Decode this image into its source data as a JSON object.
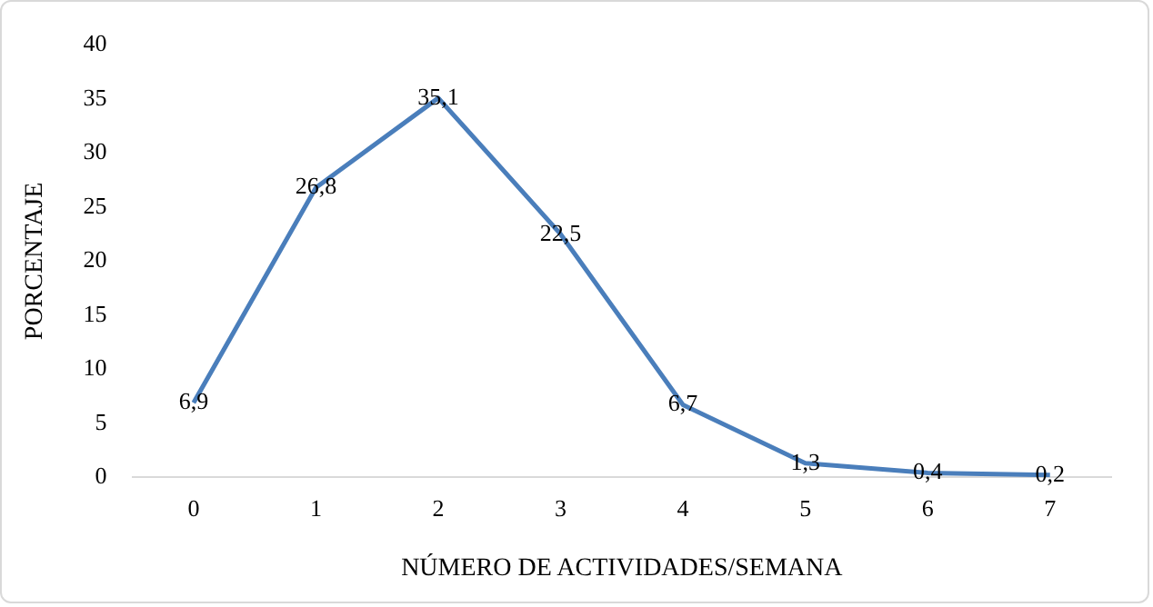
{
  "chart_data": {
    "type": "line",
    "xlabel": "NÚMERO DE ACTIVIDADES/SEMANA",
    "ylabel": "PORCENTAJE",
    "categories": [
      "0",
      "1",
      "2",
      "3",
      "4",
      "5",
      "6",
      "7"
    ],
    "series": [
      {
        "color": "#4a7ebb",
        "values": [
          6.9,
          26.8,
          35.1,
          22.5,
          6.7,
          1.3,
          0.4,
          0.2
        ],
        "value_labels": [
          "6,9",
          "26,8",
          "35,1",
          "22,5",
          "6,7",
          "1,3",
          "0,4",
          "0,2"
        ]
      }
    ],
    "ylim": [
      0,
      40
    ],
    "yticks": [
      0,
      5,
      10,
      15,
      20,
      25,
      30,
      35,
      40
    ],
    "grid": false,
    "legend": false,
    "marker": "none",
    "line_style": "solid"
  }
}
